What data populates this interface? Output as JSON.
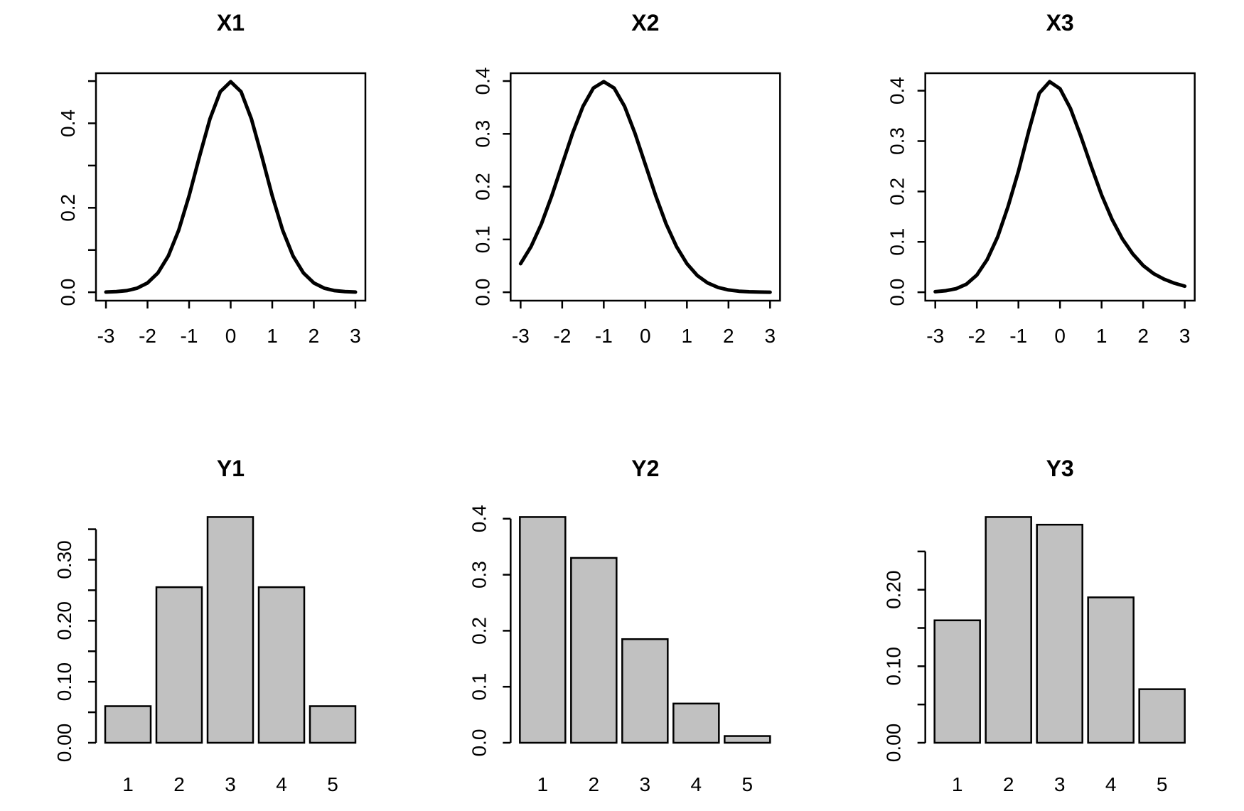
{
  "background": "#ffffff",
  "styles": {
    "curve_color": "#000000",
    "axis_color": "#000000",
    "bar_fill": "#c1c1c1",
    "bar_stroke": "#000000",
    "text_color": "#000000"
  },
  "chart_data": [
    {
      "type": "line",
      "title": "X1",
      "xlabel": "",
      "ylabel": "",
      "xlim": [
        -3,
        3
      ],
      "ylim": [
        0,
        0.4987
      ],
      "grid": false,
      "legend": "none",
      "x_ticks": [
        -3,
        -2,
        -1,
        0,
        1,
        2,
        3
      ],
      "x_tick_labels": [
        "-3",
        "-2",
        "-1",
        "0",
        "1",
        "2",
        "3"
      ],
      "y_ticks": [
        0,
        0.1,
        0.2,
        0.3,
        0.4,
        0.5
      ],
      "y_tick_labels": [
        "0.0",
        "",
        "0.2",
        "",
        "0.4",
        ""
      ],
      "x": [
        -3,
        -2.75,
        -2.5,
        -2.25,
        -2,
        -1.75,
        -1.5,
        -1.25,
        -1,
        -0.75,
        -0.5,
        -0.25,
        0,
        0.25,
        0.5,
        0.75,
        1,
        1.25,
        1.5,
        1.75,
        2,
        2.25,
        2.5,
        2.75,
        3
      ],
      "y": [
        0.0004,
        0.0014,
        0.0038,
        0.0096,
        0.0219,
        0.0456,
        0.086,
        0.1471,
        0.2283,
        0.3213,
        0.4102,
        0.4749,
        0.4987,
        0.4749,
        0.4102,
        0.3213,
        0.2283,
        0.1471,
        0.086,
        0.0456,
        0.0219,
        0.0096,
        0.0038,
        0.0014,
        0.0004
      ]
    },
    {
      "type": "line",
      "title": "X2",
      "xlabel": "",
      "ylabel": "",
      "xlim": [
        -3,
        3
      ],
      "ylim": [
        0,
        0.3989
      ],
      "grid": false,
      "legend": "none",
      "x_ticks": [
        -3,
        -2,
        -1,
        0,
        1,
        2,
        3
      ],
      "x_tick_labels": [
        "-3",
        "-2",
        "-1",
        "0",
        "1",
        "2",
        "3"
      ],
      "y_ticks": [
        0,
        0.1,
        0.2,
        0.3,
        0.4
      ],
      "y_tick_labels": [
        "0.0",
        "0.1",
        "0.2",
        "0.3",
        "0.4"
      ],
      "x": [
        -3,
        -2.75,
        -2.5,
        -2.25,
        -2,
        -1.75,
        -1.5,
        -1.25,
        -1,
        -0.75,
        -0.5,
        -0.25,
        0,
        0.25,
        0.5,
        0.75,
        1,
        1.25,
        1.5,
        1.75,
        2,
        2.25,
        2.5,
        2.75,
        3
      ],
      "y": [
        0.054,
        0.0863,
        0.1295,
        0.1827,
        0.242,
        0.3011,
        0.3521,
        0.3867,
        0.3989,
        0.3867,
        0.3521,
        0.3011,
        0.242,
        0.1827,
        0.1295,
        0.0863,
        0.054,
        0.0317,
        0.0175,
        0.0091,
        0.0044,
        0.002,
        0.0009,
        0.0004,
        0.0001
      ]
    },
    {
      "type": "line",
      "title": "X3",
      "xlabel": "",
      "ylabel": "",
      "xlim": [
        -3,
        3
      ],
      "ylim": [
        0,
        0.418
      ],
      "grid": false,
      "legend": "none",
      "x_ticks": [
        -3,
        -2,
        -1,
        0,
        1,
        2,
        3
      ],
      "x_tick_labels": [
        "-3",
        "-2",
        "-1",
        "0",
        "1",
        "2",
        "3"
      ],
      "y_ticks": [
        0,
        0.1,
        0.2,
        0.3,
        0.4
      ],
      "y_tick_labels": [
        "0.0",
        "0.1",
        "0.2",
        "0.3",
        "0.4"
      ],
      "x": [
        -3,
        -2.75,
        -2.5,
        -2.25,
        -2,
        -1.75,
        -1.5,
        -1.25,
        -1,
        -0.75,
        -0.5,
        -0.25,
        0,
        0.25,
        0.5,
        0.75,
        1,
        1.25,
        1.5,
        1.75,
        2,
        2.25,
        2.5,
        2.75,
        3
      ],
      "y": [
        0.001,
        0.003,
        0.007,
        0.016,
        0.034,
        0.065,
        0.11,
        0.17,
        0.24,
        0.32,
        0.395,
        0.418,
        0.404,
        0.365,
        0.31,
        0.25,
        0.193,
        0.145,
        0.106,
        0.076,
        0.053,
        0.037,
        0.026,
        0.018,
        0.012
      ]
    },
    {
      "type": "bar",
      "title": "Y1",
      "xlabel": "",
      "ylabel": "",
      "grid": false,
      "legend": "none",
      "categories": [
        "1",
        "2",
        "3",
        "4",
        "5"
      ],
      "values": [
        0.06,
        0.255,
        0.37,
        0.255,
        0.06
      ],
      "ylim": [
        0,
        0.37
      ],
      "y_ticks": [
        0,
        0.05,
        0.1,
        0.15,
        0.2,
        0.25,
        0.3,
        0.35
      ],
      "y_tick_labels": [
        "0.00",
        "",
        "0.10",
        "",
        "0.20",
        "",
        "0.30",
        ""
      ]
    },
    {
      "type": "bar",
      "title": "Y2",
      "xlabel": "",
      "ylabel": "",
      "grid": false,
      "legend": "none",
      "categories": [
        "1",
        "2",
        "3",
        "4",
        "5"
      ],
      "values": [
        0.403,
        0.33,
        0.185,
        0.07,
        0.012
      ],
      "ylim": [
        0,
        0.403
      ],
      "y_ticks": [
        0,
        0.1,
        0.2,
        0.3,
        0.4
      ],
      "y_tick_labels": [
        "0.0",
        "0.1",
        "0.2",
        "0.3",
        "0.4"
      ]
    },
    {
      "type": "bar",
      "title": "Y3",
      "xlabel": "",
      "ylabel": "",
      "grid": false,
      "legend": "none",
      "categories": [
        "1",
        "2",
        "3",
        "4",
        "5"
      ],
      "values": [
        0.16,
        0.295,
        0.285,
        0.19,
        0.07
      ],
      "ylim": [
        0,
        0.295
      ],
      "y_ticks": [
        0,
        0.05,
        0.1,
        0.15,
        0.2,
        0.25
      ],
      "y_tick_labels": [
        "0.00",
        "",
        "0.10",
        "",
        "0.20",
        ""
      ]
    }
  ]
}
